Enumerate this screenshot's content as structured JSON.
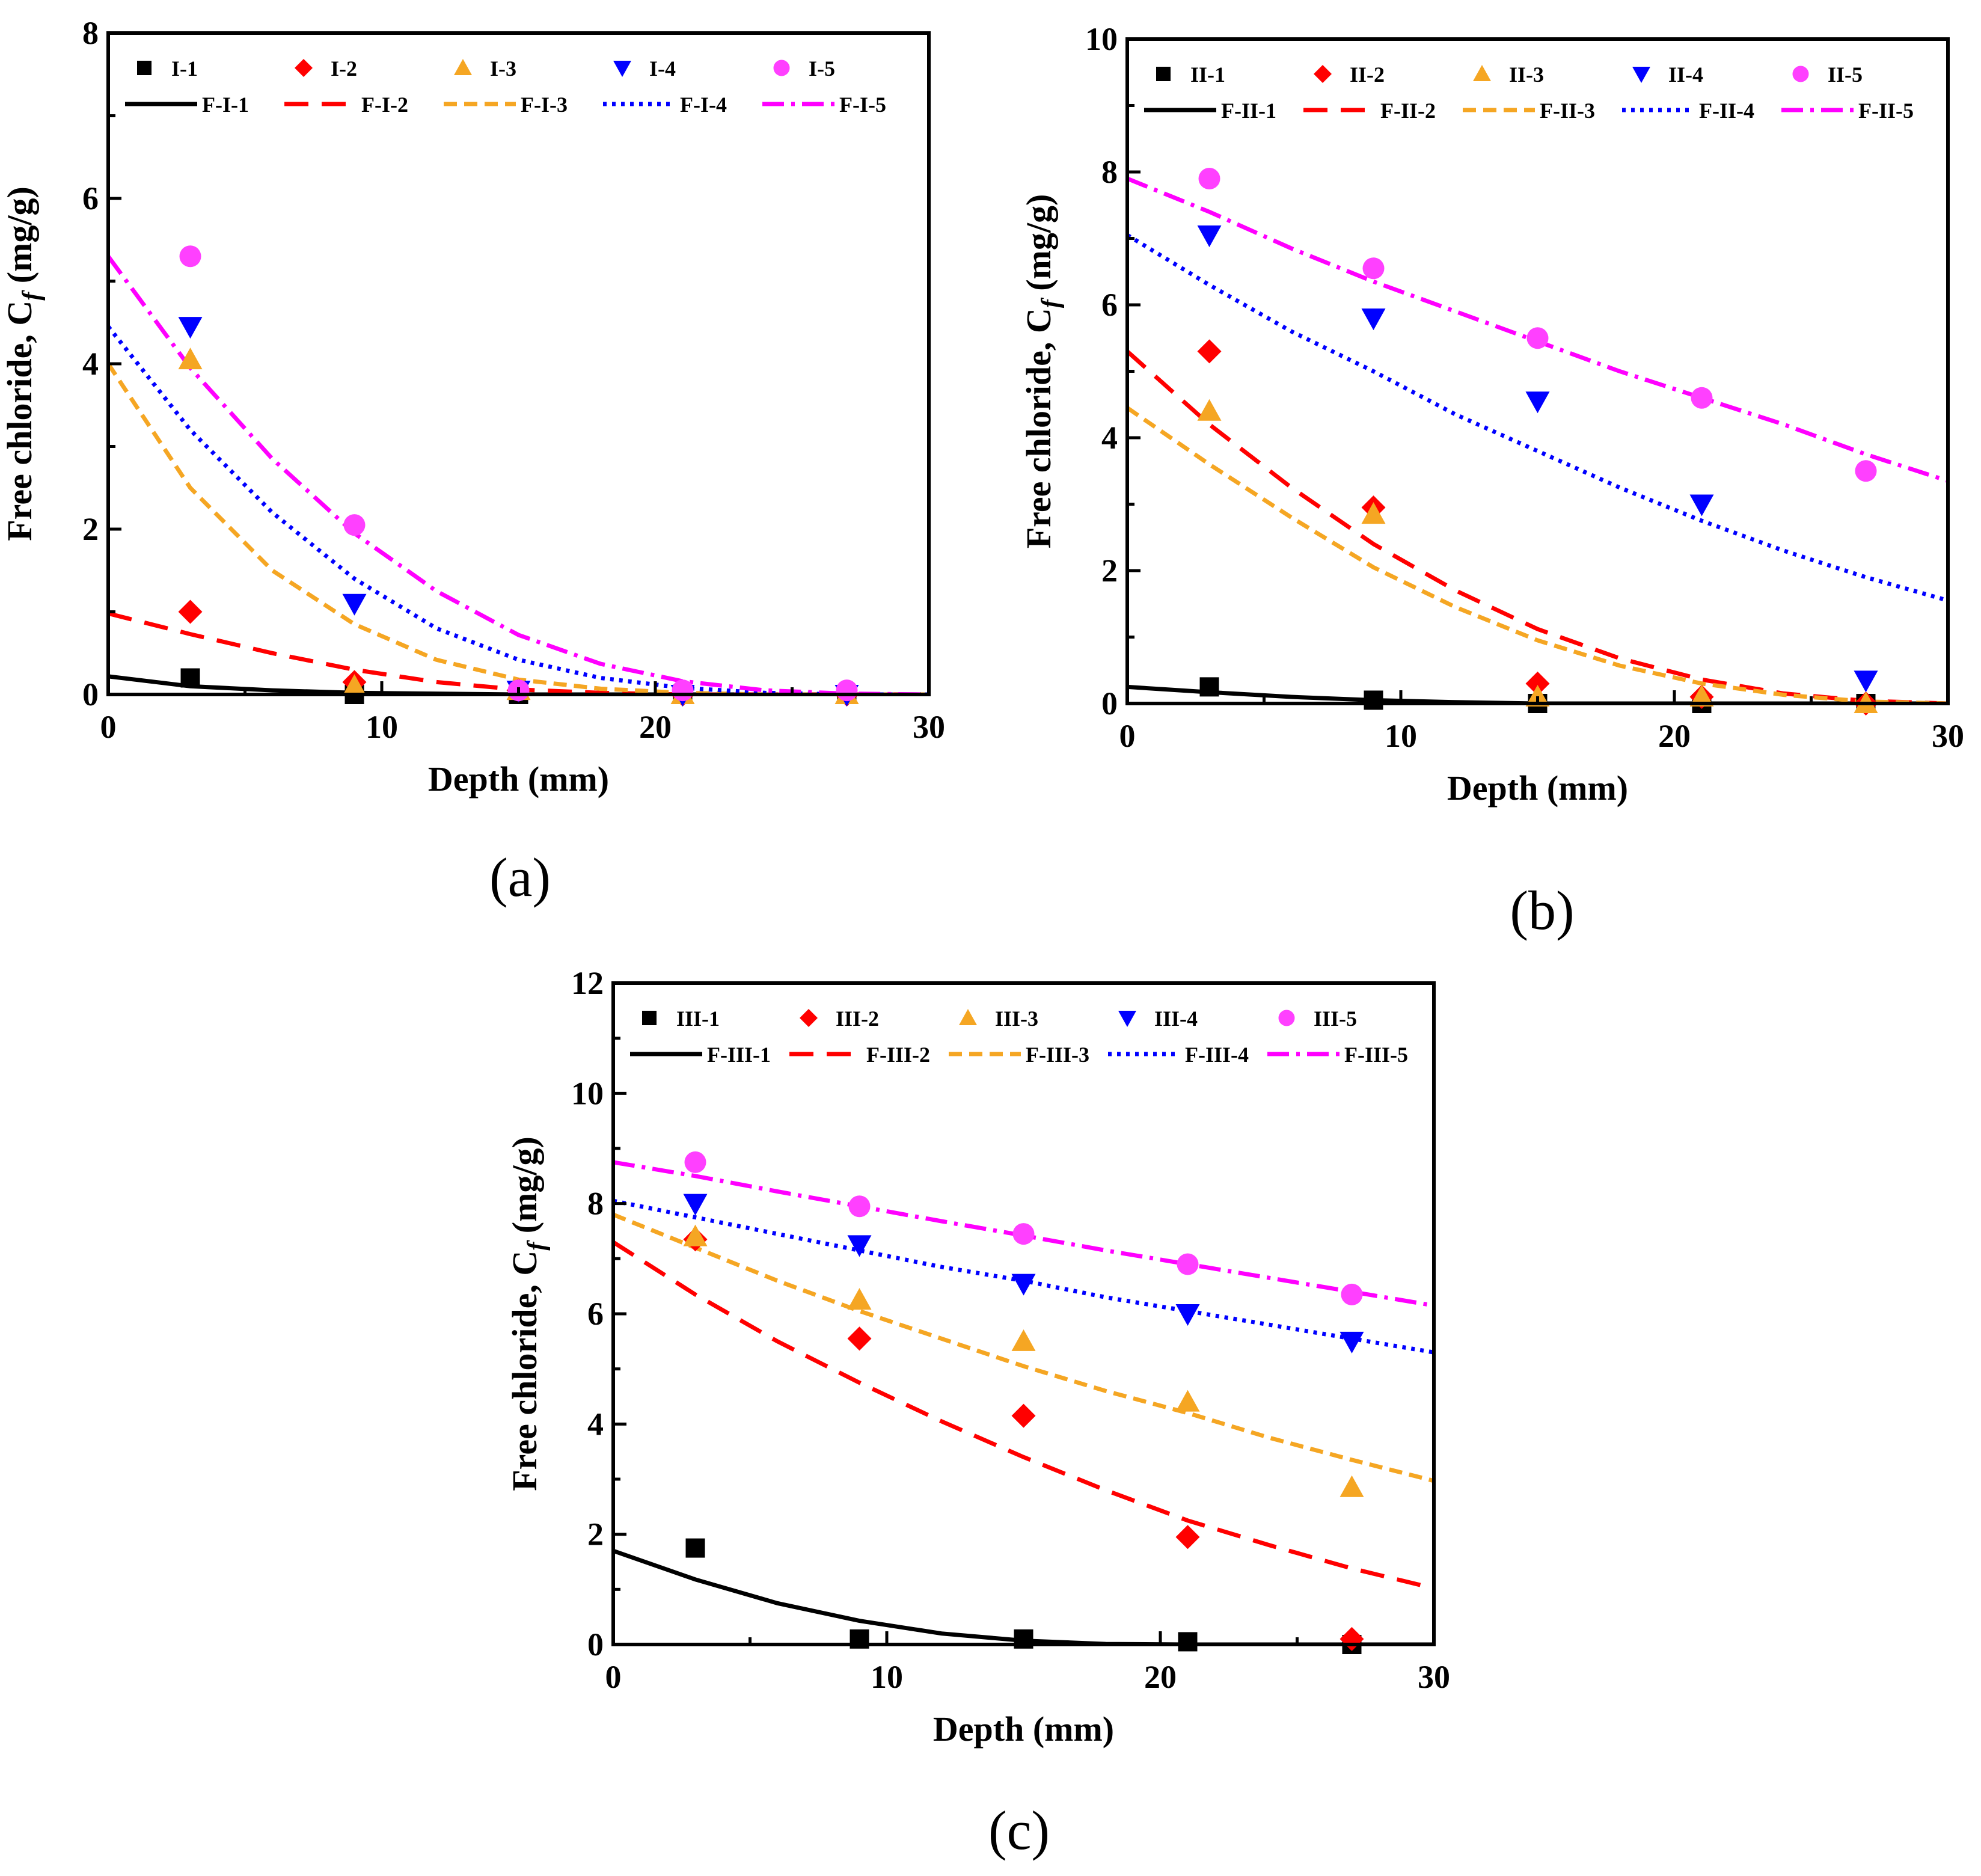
{
  "figure": {
    "panels": [
      "a",
      "b",
      "c"
    ]
  },
  "chart_data": [
    {
      "id": "a",
      "type": "scatter",
      "caption": "(a)",
      "xlabel": "Depth (mm)",
      "ylabel": "Free chloride, C_f (mg/g)",
      "ylabel_main": "Free chloride, C",
      "ylabel_sub": "f",
      "ylabel_unit": " (mg/g)",
      "xlim": [
        0,
        30
      ],
      "ylim": [
        0,
        8
      ],
      "xticks": [
        0,
        10,
        20,
        30
      ],
      "yticks": [
        0,
        2,
        4,
        6,
        8
      ],
      "x": [
        3,
        9,
        15,
        21,
        27
      ],
      "series": [
        {
          "name": "I-1",
          "marker": "square",
          "color": "#000000",
          "values": [
            0.2,
            0.0,
            0.0,
            0.0,
            0.0
          ]
        },
        {
          "name": "I-2",
          "marker": "diamond",
          "color": "#ff0000",
          "values": [
            1.0,
            0.15,
            0.05,
            0.0,
            0.0
          ]
        },
        {
          "name": "I-3",
          "marker": "triangle-up",
          "color": "#f5a623",
          "values": [
            4.05,
            0.1,
            0.05,
            0.0,
            0.0
          ]
        },
        {
          "name": "I-4",
          "marker": "triangle-down",
          "color": "#0000ff",
          "values": [
            4.45,
            1.1,
            0.05,
            0.0,
            0.0
          ]
        },
        {
          "name": "I-5",
          "marker": "circle",
          "color": "#ff40ff",
          "values": [
            5.3,
            2.05,
            0.05,
            0.05,
            0.05
          ]
        }
      ],
      "fits": [
        {
          "name": "F-I-1",
          "style": "solid",
          "color": "#000000",
          "x": [
            0,
            3,
            6,
            9,
            12,
            15,
            18,
            21,
            24,
            27,
            30
          ],
          "values": [
            0.22,
            0.1,
            0.05,
            0.02,
            0.01,
            0.0,
            0.0,
            0.0,
            0.0,
            0.0,
            0.0
          ]
        },
        {
          "name": "F-I-2",
          "style": "dash",
          "color": "#ff0000",
          "x": [
            0,
            3,
            6,
            9,
            12,
            15,
            18,
            21,
            24,
            27,
            30
          ],
          "values": [
            0.98,
            0.73,
            0.5,
            0.3,
            0.15,
            0.06,
            0.02,
            0.0,
            0.0,
            0.0,
            0.0
          ]
        },
        {
          "name": "F-I-3",
          "style": "short-dash",
          "color": "#f5a623",
          "x": [
            0,
            3,
            6,
            9,
            12,
            15,
            18,
            21,
            24,
            27,
            30
          ],
          "values": [
            4.0,
            2.5,
            1.5,
            0.85,
            0.42,
            0.18,
            0.07,
            0.02,
            0.0,
            0.0,
            0.0
          ]
        },
        {
          "name": "F-I-4",
          "style": "dot",
          "color": "#0000ff",
          "x": [
            0,
            3,
            6,
            9,
            12,
            15,
            18,
            21,
            24,
            27,
            30
          ],
          "values": [
            4.45,
            3.2,
            2.2,
            1.4,
            0.8,
            0.42,
            0.2,
            0.08,
            0.02,
            0.0,
            0.0
          ]
        },
        {
          "name": "F-I-5",
          "style": "dash-dot",
          "color": "#ff00ff",
          "x": [
            0,
            3,
            6,
            9,
            12,
            15,
            18,
            21,
            24,
            27,
            30
          ],
          "values": [
            5.3,
            3.95,
            2.85,
            1.95,
            1.25,
            0.72,
            0.37,
            0.16,
            0.05,
            0.01,
            0.0
          ]
        }
      ]
    },
    {
      "id": "b",
      "type": "scatter",
      "caption": "(b)",
      "xlabel": "Depth (mm)",
      "ylabel": "Free chloride, C_f (mg/g)",
      "ylabel_main": "Free chloride, C",
      "ylabel_sub": "f",
      "ylabel_unit": " (mg/g)",
      "xlim": [
        0,
        30
      ],
      "ylim": [
        0,
        10
      ],
      "xticks": [
        0,
        10,
        20,
        30
      ],
      "yticks": [
        0,
        2,
        4,
        6,
        8,
        10
      ],
      "x": [
        3,
        9,
        15,
        21,
        27
      ],
      "series": [
        {
          "name": "II-1",
          "marker": "square",
          "color": "#000000",
          "values": [
            0.25,
            0.05,
            0.0,
            0.0,
            0.0
          ]
        },
        {
          "name": "II-2",
          "marker": "diamond",
          "color": "#ff0000",
          "values": [
            5.3,
            2.95,
            0.3,
            0.1,
            0.0
          ]
        },
        {
          "name": "II-3",
          "marker": "triangle-up",
          "color": "#f5a623",
          "values": [
            4.4,
            2.85,
            0.1,
            0.1,
            0.0
          ]
        },
        {
          "name": "II-4",
          "marker": "triangle-down",
          "color": "#0000ff",
          "values": [
            7.05,
            5.8,
            4.55,
            3.0,
            0.35
          ]
        },
        {
          "name": "II-5",
          "marker": "circle",
          "color": "#ff40ff",
          "values": [
            7.9,
            6.55,
            5.5,
            4.6,
            3.5
          ]
        }
      ],
      "fits": [
        {
          "name": "F-II-1",
          "style": "solid",
          "color": "#000000",
          "x": [
            0,
            3,
            6,
            9,
            12,
            15,
            18,
            21,
            24,
            27,
            30
          ],
          "values": [
            0.25,
            0.17,
            0.1,
            0.05,
            0.02,
            0.0,
            0.0,
            0.0,
            0.0,
            0.0,
            0.0
          ]
        },
        {
          "name": "F-II-2",
          "style": "dash",
          "color": "#ff0000",
          "x": [
            0,
            3,
            6,
            9,
            12,
            15,
            18,
            21,
            24,
            27,
            30
          ],
          "values": [
            5.3,
            4.2,
            3.25,
            2.4,
            1.7,
            1.12,
            0.68,
            0.36,
            0.15,
            0.04,
            0.0
          ]
        },
        {
          "name": "F-II-3",
          "style": "short-dash",
          "color": "#f5a623",
          "x": [
            0,
            3,
            6,
            9,
            12,
            15,
            18,
            21,
            24,
            27,
            30
          ],
          "values": [
            4.45,
            3.6,
            2.8,
            2.05,
            1.45,
            0.95,
            0.57,
            0.3,
            0.13,
            0.03,
            0.0
          ]
        },
        {
          "name": "F-II-4",
          "style": "dot",
          "color": "#0000ff",
          "x": [
            0,
            3,
            6,
            9,
            12,
            15,
            18,
            21,
            24,
            27,
            30
          ],
          "values": [
            7.05,
            6.3,
            5.6,
            5.0,
            4.35,
            3.8,
            3.25,
            2.75,
            2.3,
            1.9,
            1.55
          ]
        },
        {
          "name": "F-II-5",
          "style": "dash-dot",
          "color": "#ff00ff",
          "x": [
            0,
            3,
            6,
            9,
            12,
            15,
            18,
            21,
            24,
            27,
            30
          ],
          "values": [
            7.9,
            7.4,
            6.85,
            6.35,
            5.9,
            5.45,
            5.0,
            4.6,
            4.2,
            3.75,
            3.35
          ]
        }
      ]
    },
    {
      "id": "c",
      "type": "scatter",
      "caption": "(c)",
      "xlabel": "Depth (mm)",
      "ylabel": "Free chloride, C_f (mg/g)",
      "ylabel_main": "Free chloride, C",
      "ylabel_sub": "f",
      "ylabel_unit": " (mg/g)",
      "xlim": [
        0,
        30
      ],
      "ylim": [
        0,
        12
      ],
      "xticks": [
        0,
        10,
        20,
        30
      ],
      "yticks": [
        0,
        2,
        4,
        6,
        8,
        10,
        12
      ],
      "x": [
        3,
        9,
        15,
        21,
        27
      ],
      "series": [
        {
          "name": "III-1",
          "marker": "square",
          "color": "#000000",
          "values": [
            1.75,
            0.1,
            0.1,
            0.05,
            0.0
          ]
        },
        {
          "name": "III-2",
          "marker": "diamond",
          "color": "#ff0000",
          "values": [
            7.35,
            5.55,
            4.15,
            1.95,
            0.1
          ]
        },
        {
          "name": "III-3",
          "marker": "triangle-up",
          "color": "#f5a623",
          "values": [
            7.4,
            6.25,
            5.5,
            4.4,
            2.85
          ]
        },
        {
          "name": "III-4",
          "marker": "triangle-down",
          "color": "#0000ff",
          "values": [
            8.0,
            7.25,
            6.55,
            6.0,
            5.5
          ]
        },
        {
          "name": "III-5",
          "marker": "circle",
          "color": "#ff40ff",
          "values": [
            8.75,
            7.95,
            7.45,
            6.9,
            6.35
          ]
        }
      ],
      "fits": [
        {
          "name": "F-III-1",
          "style": "solid",
          "color": "#000000",
          "x": [
            0,
            3,
            6,
            9,
            12,
            15,
            18,
            21,
            24,
            27,
            30
          ],
          "values": [
            1.7,
            1.18,
            0.75,
            0.43,
            0.2,
            0.07,
            0.01,
            0.0,
            0.0,
            0.0,
            0.0
          ]
        },
        {
          "name": "F-III-2",
          "style": "dash",
          "color": "#ff0000",
          "x": [
            0,
            3,
            6,
            9,
            12,
            15,
            18,
            21,
            24,
            27,
            30
          ],
          "values": [
            7.3,
            6.35,
            5.5,
            4.75,
            4.05,
            3.4,
            2.8,
            2.25,
            1.8,
            1.38,
            1.02
          ]
        },
        {
          "name": "F-III-3",
          "style": "short-dash",
          "color": "#f5a623",
          "x": [
            0,
            3,
            6,
            9,
            12,
            15,
            18,
            21,
            24,
            27,
            30
          ],
          "values": [
            7.8,
            7.2,
            6.6,
            6.05,
            5.55,
            5.05,
            4.6,
            4.2,
            3.75,
            3.35,
            2.97
          ]
        },
        {
          "name": "F-III-4",
          "style": "dot",
          "color": "#0000ff",
          "x": [
            0,
            3,
            6,
            9,
            12,
            15,
            18,
            21,
            24,
            27,
            30
          ],
          "values": [
            8.05,
            7.75,
            7.45,
            7.15,
            6.85,
            6.6,
            6.3,
            6.05,
            5.8,
            5.55,
            5.3
          ]
        },
        {
          "name": "F-III-5",
          "style": "dash-dot",
          "color": "#ff00ff",
          "x": [
            0,
            3,
            6,
            9,
            12,
            15,
            18,
            21,
            24,
            27,
            30
          ],
          "values": [
            8.75,
            8.5,
            8.22,
            7.95,
            7.68,
            7.42,
            7.15,
            6.9,
            6.65,
            6.4,
            6.15
          ]
        }
      ]
    }
  ]
}
